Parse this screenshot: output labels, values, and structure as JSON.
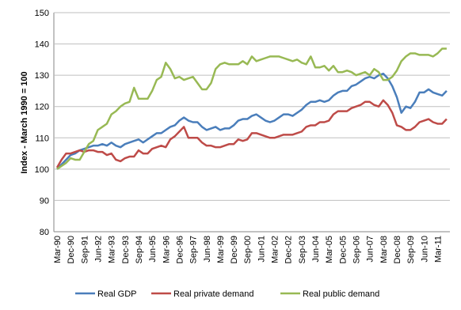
{
  "chart_data": {
    "type": "line",
    "y_label": "Index - March 1990 = 100",
    "categories": [
      "Mar-90",
      null,
      null,
      "Dec-90",
      null,
      null,
      "Sep-91",
      null,
      null,
      "Jun-92",
      null,
      null,
      "Mar-93",
      null,
      null,
      "Dec-93",
      null,
      null,
      "Sep-94",
      null,
      null,
      "Jun-95",
      null,
      null,
      "Mar-96",
      null,
      null,
      "Dec-96",
      null,
      null,
      "Sep-97",
      null,
      null,
      "Jun-98",
      null,
      null,
      "Mar-99",
      null,
      null,
      "Dec-99",
      null,
      null,
      "Sep-00",
      null,
      null,
      "Jun-01",
      null,
      null,
      "Mar-02",
      null,
      null,
      "Dec-02",
      null,
      null,
      "Sep-03",
      null,
      null,
      "Jun-04",
      null,
      null,
      "Mar-05",
      null,
      null,
      "Dec-05",
      null,
      null,
      "Sep-06",
      null,
      null,
      "Jun-07",
      null,
      null,
      "Mar-08",
      null,
      null,
      "Dec-08",
      null,
      null,
      "Sep-09",
      null,
      null,
      "Jun-10",
      null,
      null,
      "Mar-11",
      null,
      null
    ],
    "series": [
      {
        "name": "Real GDP",
        "color": "#4a7ebb",
        "values": [
          100,
          101.5,
          103,
          104.5,
          105,
          106,
          106.5,
          107,
          107.5,
          107.5,
          108,
          107.5,
          108.5,
          107.5,
          107,
          108,
          108.5,
          109,
          109.5,
          108.5,
          109.5,
          110.5,
          111.5,
          111.5,
          112.5,
          113.5,
          114,
          115.5,
          116.5,
          115.5,
          115,
          115,
          113.5,
          112.5,
          113,
          113.5,
          112.5,
          113,
          113,
          114,
          115.5,
          116,
          116,
          117,
          117.5,
          116.5,
          115.5,
          115,
          115.5,
          116.5,
          117.5,
          117.5,
          117,
          118,
          119,
          120.5,
          121.5,
          121.5,
          122,
          121.5,
          122,
          123.5,
          124.5,
          125,
          125,
          126.5,
          127,
          128,
          129,
          129.5,
          129,
          130,
          130.5,
          129,
          126.5,
          123,
          118,
          120,
          119.5,
          121.5,
          124.5,
          124.5,
          125.5,
          124.5,
          124,
          123.5,
          125
        ]
      },
      {
        "name": "Real private demand",
        "color": "#be4b48",
        "values": [
          100.5,
          103,
          105,
          105,
          105.5,
          106,
          105.5,
          106,
          106,
          105.5,
          105.5,
          104.5,
          105,
          103,
          102.5,
          103.5,
          104,
          104,
          106,
          105,
          105,
          106.5,
          107,
          107.5,
          107,
          109.5,
          110.5,
          112,
          113.5,
          110,
          110,
          110,
          108.5,
          107.5,
          107.5,
          107,
          107,
          107.5,
          108,
          108,
          109.5,
          109,
          109.5,
          111.5,
          111.5,
          111,
          110.5,
          110,
          110,
          110.5,
          111,
          111,
          111,
          111.5,
          112,
          113.5,
          114,
          114,
          115,
          115,
          115.5,
          117.5,
          118.5,
          118.5,
          118.5,
          119.5,
          120,
          120.5,
          121.5,
          121.5,
          120.5,
          120,
          122,
          120.5,
          118,
          114,
          113.5,
          112.5,
          112.5,
          113.5,
          115,
          115.5,
          116,
          115,
          114.5,
          114.5,
          116
        ]
      },
      {
        "name": "Real public demand",
        "color": "#98b954",
        "values": [
          100,
          101,
          102,
          103.5,
          103,
          103,
          105.5,
          108,
          109,
          112.5,
          113.5,
          114.5,
          117.5,
          118.5,
          120,
          121,
          121.5,
          126,
          122.5,
          122.5,
          122.5,
          125,
          128.5,
          129.5,
          134,
          132,
          129,
          129.5,
          128.5,
          129,
          129.5,
          127.5,
          125.5,
          125.5,
          127.5,
          132,
          133.5,
          134,
          133.5,
          133.5,
          133.5,
          134.5,
          133.5,
          136,
          134.5,
          135,
          135.5,
          136,
          136,
          136,
          135.5,
          135,
          134.5,
          135,
          134,
          133.5,
          136,
          132.5,
          132.5,
          133,
          131.5,
          133,
          131,
          131,
          131.5,
          131,
          130,
          130.5,
          131,
          130,
          132,
          131,
          128.5,
          128.5,
          129.5,
          131.5,
          134.5,
          136,
          137,
          137,
          136.5,
          136.5,
          136.5,
          136,
          137,
          138.5,
          138.5
        ]
      }
    ],
    "ylim": [
      80,
      150
    ],
    "yticks": [
      80,
      90,
      100,
      110,
      120,
      130,
      140,
      150
    ],
    "grid": true
  }
}
